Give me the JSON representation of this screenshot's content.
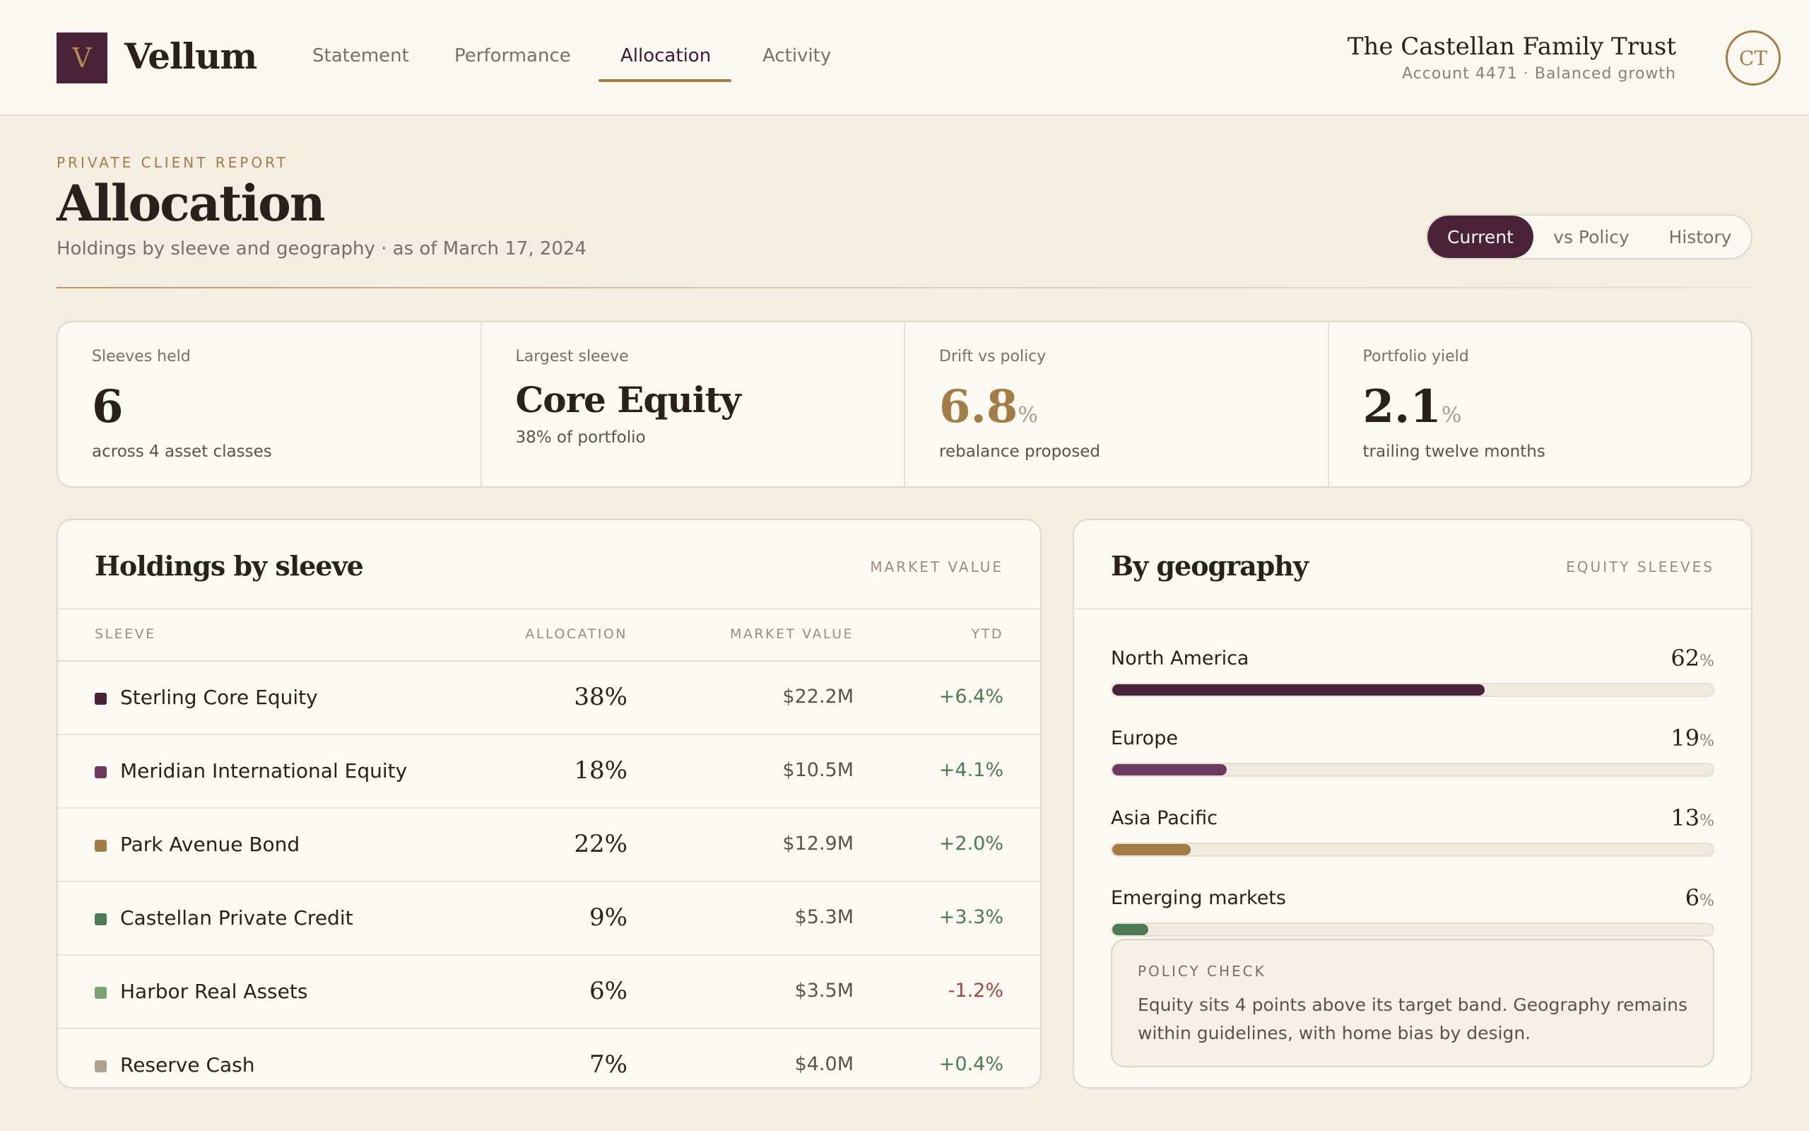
{
  "brand": {
    "mark": "V",
    "name": "Vellum"
  },
  "nav": {
    "tabs": [
      "Statement",
      "Performance",
      "Allocation",
      "Activity"
    ],
    "active": "Allocation"
  },
  "account": {
    "name": "The Castellan Family Trust",
    "sub": "Account 4471 · Balanced growth",
    "initials": "CT"
  },
  "page": {
    "eyebrow": "PRIVATE CLIENT REPORT",
    "title": "Allocation",
    "subtitle": "Holdings by sleeve and geography · as of March 17, 2024"
  },
  "view_toggle": {
    "options": [
      "Current",
      "vs Policy",
      "History"
    ],
    "selected": "Current"
  },
  "kpis": [
    {
      "label": "Sleeves held",
      "value": "6",
      "unit": "",
      "sub": "across 4 asset classes"
    },
    {
      "label": "Largest sleeve",
      "value": "Core Equity",
      "unit": "",
      "sub": "38% of portfolio"
    },
    {
      "label": "Drift vs policy",
      "value": "6.8",
      "unit": "%",
      "sub": "rebalance proposed"
    },
    {
      "label": "Portfolio yield",
      "value": "2.1",
      "unit": "%",
      "sub": "trailing twelve months"
    }
  ],
  "holdings": {
    "title": "Holdings by sleeve",
    "tag": "MARKET VALUE",
    "columns": [
      "SLEEVE",
      "ALLOCATION",
      "MARKET VALUE",
      "YTD"
    ],
    "rows": [
      {
        "name": "Sterling Core Equity",
        "allocation": "38%",
        "market_value": "$22.2M",
        "ytd": "+6.4%",
        "color": "#4a2339",
        "ytd_color": "#4e7a55"
      },
      {
        "name": "Meridian International Equity",
        "allocation": "18%",
        "market_value": "$10.5M",
        "ytd": "+4.1%",
        "color": "#6e3a60",
        "ytd_color": "#4e7a55"
      },
      {
        "name": "Park Avenue Bond",
        "allocation": "22%",
        "market_value": "$12.9M",
        "ytd": "+2.0%",
        "color": "#a37d45",
        "ytd_color": "#4e7a55"
      },
      {
        "name": "Castellan Private Credit",
        "allocation": "9%",
        "market_value": "$5.3M",
        "ytd": "+3.3%",
        "color": "#4e7a55",
        "ytd_color": "#4e7a55"
      },
      {
        "name": "Harbor Real Assets",
        "allocation": "6%",
        "market_value": "$3.5M",
        "ytd": "-1.2%",
        "color": "#7fa176",
        "ytd_color": "#a2443f"
      },
      {
        "name": "Reserve Cash",
        "allocation": "7%",
        "market_value": "$4.0M",
        "ytd": "+0.4%",
        "color": "#b0a08e",
        "ytd_color": "#4e7a55"
      }
    ]
  },
  "geography": {
    "title": "By geography",
    "tag": "EQUITY SLEEVES",
    "items": [
      {
        "name": "North America",
        "pct": 62,
        "color": "#4a2339"
      },
      {
        "name": "Europe",
        "pct": 19,
        "color": "#6e3a60"
      },
      {
        "name": "Asia Pacific",
        "pct": 13,
        "color": "#a37d45"
      },
      {
        "name": "Emerging markets",
        "pct": 6,
        "color": "#4e7a55"
      }
    ],
    "policy_check": {
      "label": "POLICY CHECK",
      "text": "Equity sits 4 points above its target band. Geography remains within guidelines, with home bias by design."
    }
  }
}
